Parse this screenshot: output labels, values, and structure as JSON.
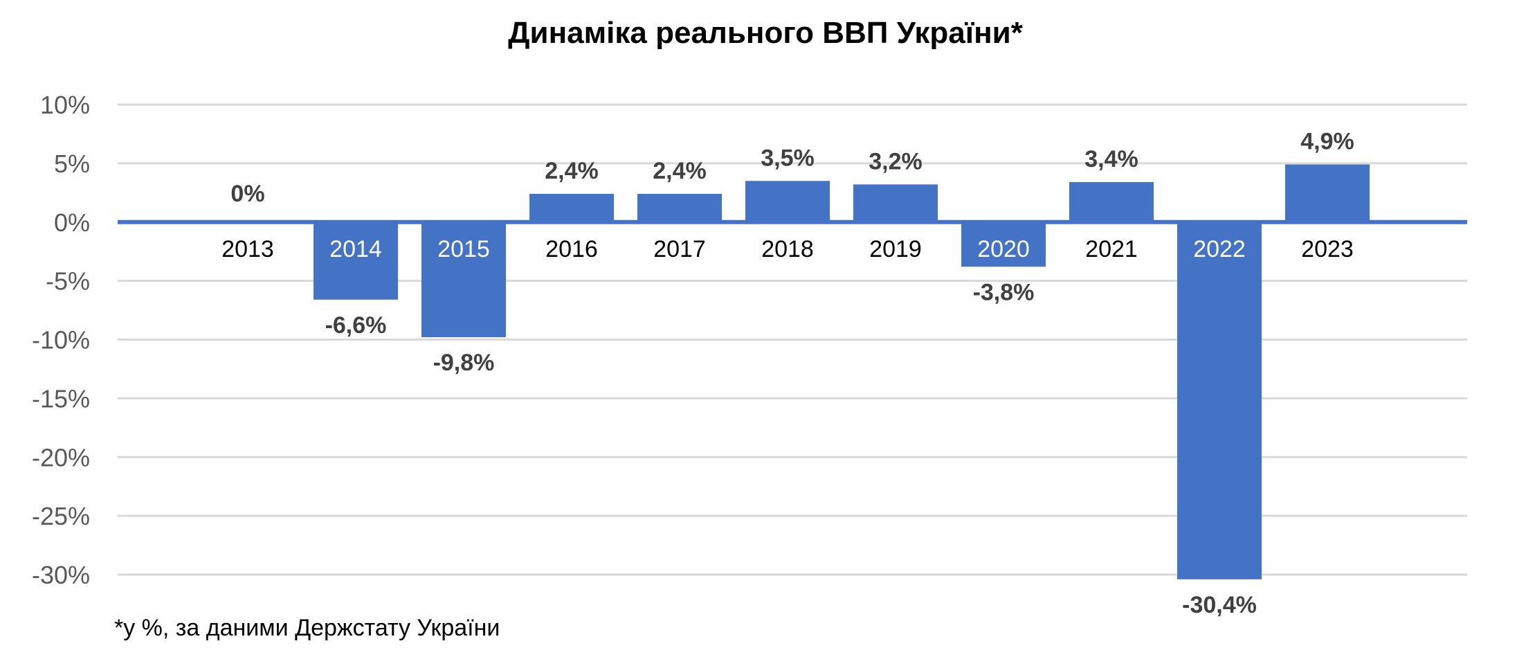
{
  "colors": {
    "bar": "#4472C4",
    "grid": "#D9D9D9",
    "tick_text": "#595959",
    "data_label": "#404040",
    "label_on_bar": "#FFFFFF",
    "label_off_bar": "#000000"
  },
  "chart_data": {
    "type": "bar",
    "title": "Динаміка реального ВВП України*",
    "xlabel": "",
    "ylabel": "",
    "ylim": [
      -30,
      10
    ],
    "y_ticks": [
      10,
      5,
      0,
      -5,
      -10,
      -15,
      -20,
      -25,
      -30
    ],
    "y_tick_labels": [
      "10%",
      "5%",
      "0%",
      "-5%",
      "-10%",
      "-15%",
      "-20%",
      "-25%",
      "-30%"
    ],
    "grid": true,
    "legend": "none",
    "categories": [
      "2013",
      "2014",
      "2015",
      "2016",
      "2017",
      "2018",
      "2019",
      "2020",
      "2021",
      "2022",
      "2023"
    ],
    "values": [
      0,
      -6.6,
      -9.8,
      2.4,
      2.4,
      3.5,
      3.2,
      -3.8,
      3.4,
      -30.4,
      4.9
    ],
    "data_labels": [
      "0%",
      "-6,6%",
      "-9,8%",
      "2,4%",
      "2,4%",
      "3,5%",
      "3,2%",
      "-3,8%",
      "3,4%",
      "-30,4%",
      "4,9%"
    ]
  },
  "footnote": "*у %, за даними Держстату України"
}
